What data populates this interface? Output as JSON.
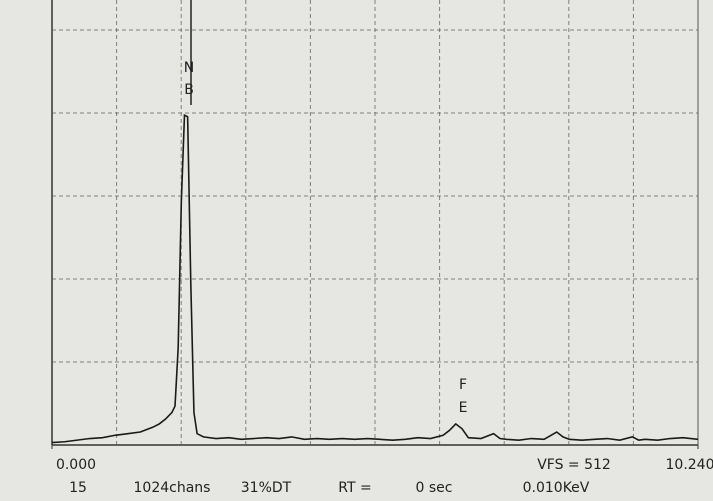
{
  "chart_data": {
    "type": "line",
    "x": [
      0,
      0.2,
      0.4,
      0.6,
      0.8,
      1.0,
      1.2,
      1.4,
      1.6,
      1.7,
      1.8,
      1.9,
      1.95,
      2.0,
      2.05,
      2.1,
      2.15,
      2.2,
      2.25,
      2.3,
      2.4,
      2.6,
      2.8,
      3.0,
      3.2,
      3.4,
      3.6,
      3.8,
      4.0,
      4.2,
      4.4,
      4.6,
      4.8,
      5.0,
      5.2,
      5.4,
      5.6,
      5.8,
      6.0,
      6.2,
      6.3,
      6.4,
      6.5,
      6.6,
      6.8,
      7.0,
      7.1,
      7.2,
      7.4,
      7.6,
      7.8,
      8.0,
      8.1,
      8.2,
      8.4,
      8.6,
      8.8,
      9.0,
      9.2,
      9.3,
      9.4,
      9.6,
      9.8,
      10.0,
      10.24
    ],
    "values": [
      3,
      4,
      6,
      8,
      9,
      12,
      14,
      16,
      22,
      26,
      32,
      40,
      48,
      120,
      300,
      407,
      405,
      200,
      40,
      14,
      10,
      8,
      9,
      7,
      8,
      9,
      8,
      10,
      7,
      8,
      7,
      8,
      7,
      8,
      7,
      6,
      7,
      9,
      8,
      12,
      18,
      26,
      20,
      9,
      8,
      14,
      8,
      7,
      6,
      8,
      7,
      16,
      10,
      7,
      6,
      7,
      8,
      6,
      10,
      6,
      7,
      6,
      8,
      9,
      7
    ],
    "color": "#1a1a1a",
    "xlim": [
      0,
      10.24
    ],
    "ylim": [
      0,
      512
    ],
    "xticks": [
      {
        "value": 0,
        "label": "0.000"
      },
      {
        "value": 10.24,
        "label": "10.240"
      }
    ],
    "xgrid": [
      1.024,
      2.048,
      3.072,
      4.096,
      5.12,
      6.144,
      7.168,
      8.192,
      9.216
    ],
    "ygrid": [
      102.4,
      204.8,
      307.2,
      409.6,
      512
    ],
    "annotations": [
      "N",
      "B",
      "F",
      "E"
    ],
    "vfs": "VFS = 512",
    "status": [
      "15",
      "1024chans",
      "31%DT",
      "RT =",
      "0 sec",
      "0.010KeV"
    ]
  }
}
